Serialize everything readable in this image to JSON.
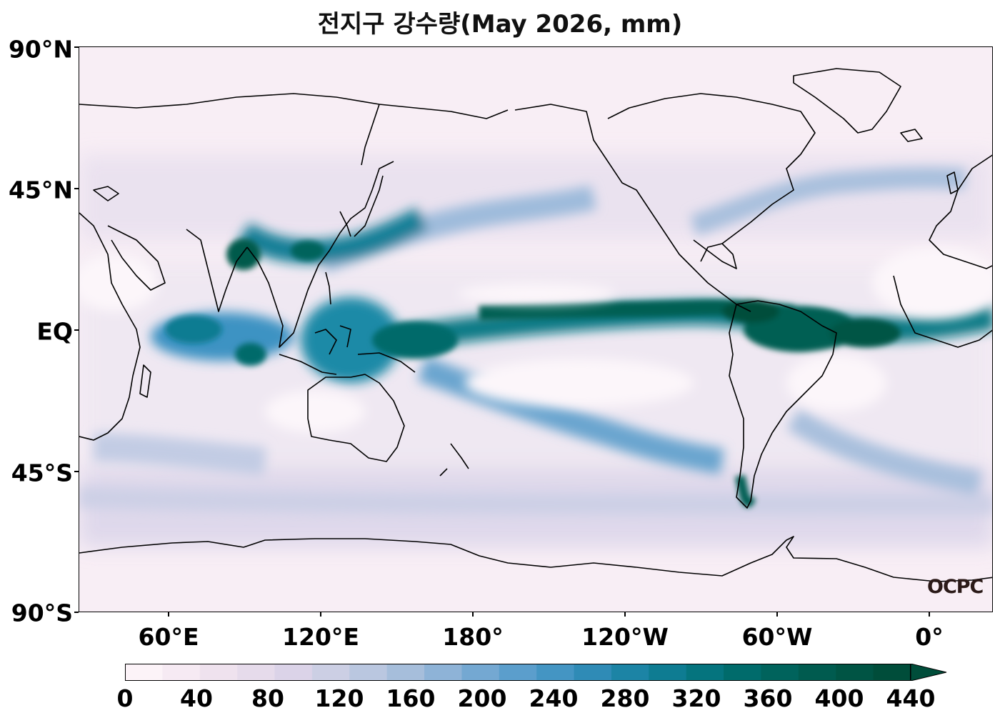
{
  "title": "전지구 강수량(May 2026, mm)",
  "lat_labels": [
    "90°N",
    "45°N",
    "EQ",
    "45°S",
    "90°S"
  ],
  "lon_labels": [
    "60°E",
    "120°E",
    "180°",
    "120°W",
    "60°W",
    "0°"
  ],
  "colorbar": {
    "ticks": [
      "0",
      "40",
      "80",
      "120",
      "160",
      "200",
      "240",
      "280",
      "320",
      "360",
      "400",
      "440"
    ],
    "colors": [
      "#fcf3f8",
      "#f6eaf3",
      "#efe2ee",
      "#e6dbeb",
      "#dbd3e8",
      "#cccfe4",
      "#bac7e0",
      "#a6bedb",
      "#8eb3d7",
      "#74a8d2",
      "#5b9ecc",
      "#4495c3",
      "#2f8bb6",
      "#1c84a5",
      "#0e7c92",
      "#05747e",
      "#006b6b",
      "#00635c",
      "#005b4f",
      "#005444",
      "#004d3a"
    ],
    "min": 0,
    "max": 440,
    "step": 20,
    "extend": "max"
  },
  "logo": "OCPC",
  "map": {
    "lon_range": [
      30,
      390
    ],
    "lat_range": [
      -90,
      90
    ],
    "projection": "plate-carree"
  }
}
